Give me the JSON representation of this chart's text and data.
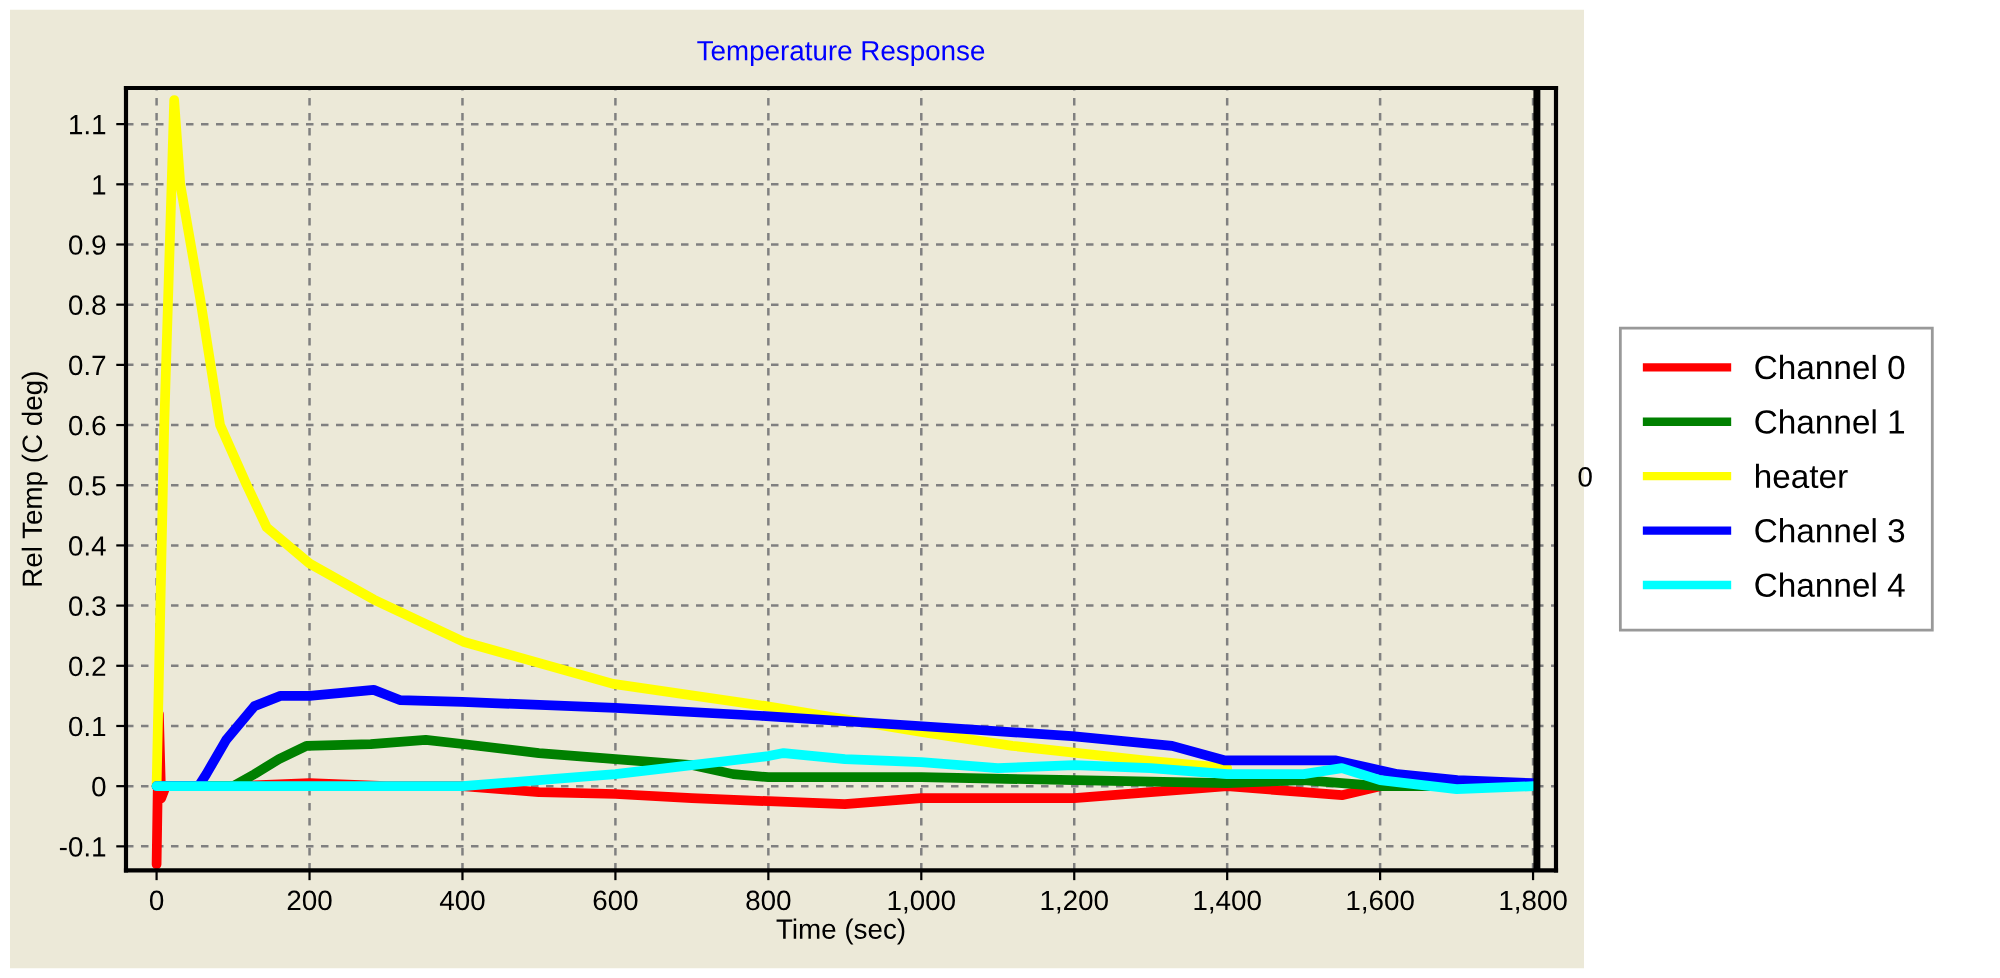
{
  "chart_data": {
    "type": "line",
    "title": "Temperature Response",
    "xlabel": "Time (sec)",
    "ylabel": "Rel Temp (C deg)",
    "xlim": [
      -40,
      1830
    ],
    "ylim": [
      -0.14,
      1.16
    ],
    "xticks": [
      0,
      200,
      400,
      600,
      800,
      {
        "value": 1000,
        "label": "1,000"
      },
      {
        "value": 1200,
        "label": "1,200"
      },
      {
        "value": 1400,
        "label": "1,400"
      },
      {
        "value": 1600,
        "label": "1,600"
      },
      {
        "value": 1800,
        "label": "1,800"
      }
    ],
    "yticks": [
      -0.1,
      0,
      0.1,
      0.2,
      0.3,
      0.4,
      0.5,
      0.6,
      0.7,
      0.8,
      0.9,
      1,
      1.1
    ],
    "annotations": [
      "0"
    ],
    "grid": true,
    "legend": "right",
    "line_style": "solid",
    "ref_lines": [
      {
        "axis": "x",
        "value": 1805,
        "color": "#000000"
      }
    ],
    "series": [
      {
        "name": "Channel 0",
        "color": "#ff0000",
        "x": [
          0,
          3,
          6,
          12,
          100,
          200,
          300,
          400,
          500,
          600,
          700,
          800,
          900,
          1000,
          1100,
          1200,
          1300,
          1400,
          1500,
          1550,
          1600
        ],
        "values": [
          -0.13,
          0.12,
          -0.02,
          0,
          0,
          0.005,
          0,
          0,
          -0.01,
          -0.013,
          -0.02,
          -0.025,
          -0.03,
          -0.02,
          -0.02,
          -0.02,
          -0.01,
          0,
          -0.01,
          -0.015,
          0
        ]
      },
      {
        "name": "Channel 1",
        "color": "#008000",
        "x": [
          0,
          100,
          128,
          160,
          196,
          280,
          352,
          400,
          500,
          600,
          700,
          754,
          800,
          1000,
          1200,
          1400,
          1500,
          1600,
          1800
        ],
        "values": [
          0,
          0,
          0.02,
          0.045,
          0.067,
          0.07,
          0.077,
          0.07,
          0.055,
          0.045,
          0.035,
          0.02,
          0.015,
          0.015,
          0.01,
          0.005,
          0.01,
          0,
          0
        ]
      },
      {
        "name": "heater",
        "color": "#ffff00",
        "x": [
          0,
          10,
          23,
          31,
          57,
          83,
          118,
          144,
          200,
          284,
          401,
          597,
          797,
          1000,
          1119,
          1291,
          1400
        ],
        "values": [
          0,
          0.6,
          1.14,
          1.0,
          0.81,
          0.6,
          0.5,
          0.43,
          0.37,
          0.31,
          0.24,
          0.17,
          0.133,
          0.09,
          0.067,
          0.043,
          0.03
        ]
      },
      {
        "name": "Channel 3",
        "color": "#0000ff",
        "x": [
          0,
          55,
          65,
          91,
          128,
          162,
          200,
          284,
          318,
          400,
          600,
          788,
          997,
          1197,
          1328,
          1396,
          1485,
          1541,
          1623,
          1701,
          1800
        ],
        "values": [
          0,
          0,
          0.02,
          0.077,
          0.133,
          0.15,
          0.15,
          0.16,
          0.143,
          0.14,
          0.13,
          0.117,
          0.1,
          0.083,
          0.067,
          0.043,
          0.043,
          0.043,
          0.02,
          0.01,
          0.005
        ]
      },
      {
        "name": "Channel 4",
        "color": "#00ffff",
        "x": [
          0,
          200,
          400,
          500,
          600,
          700,
          800,
          820,
          900,
          1000,
          1100,
          1200,
          1300,
          1400,
          1500,
          1550,
          1600,
          1700,
          1800
        ],
        "values": [
          0,
          0,
          0,
          0.01,
          0.02,
          0.035,
          0.05,
          0.055,
          0.045,
          0.04,
          0.03,
          0.035,
          0.03,
          0.02,
          0.02,
          0.03,
          0.01,
          -0.005,
          0
        ]
      }
    ]
  }
}
